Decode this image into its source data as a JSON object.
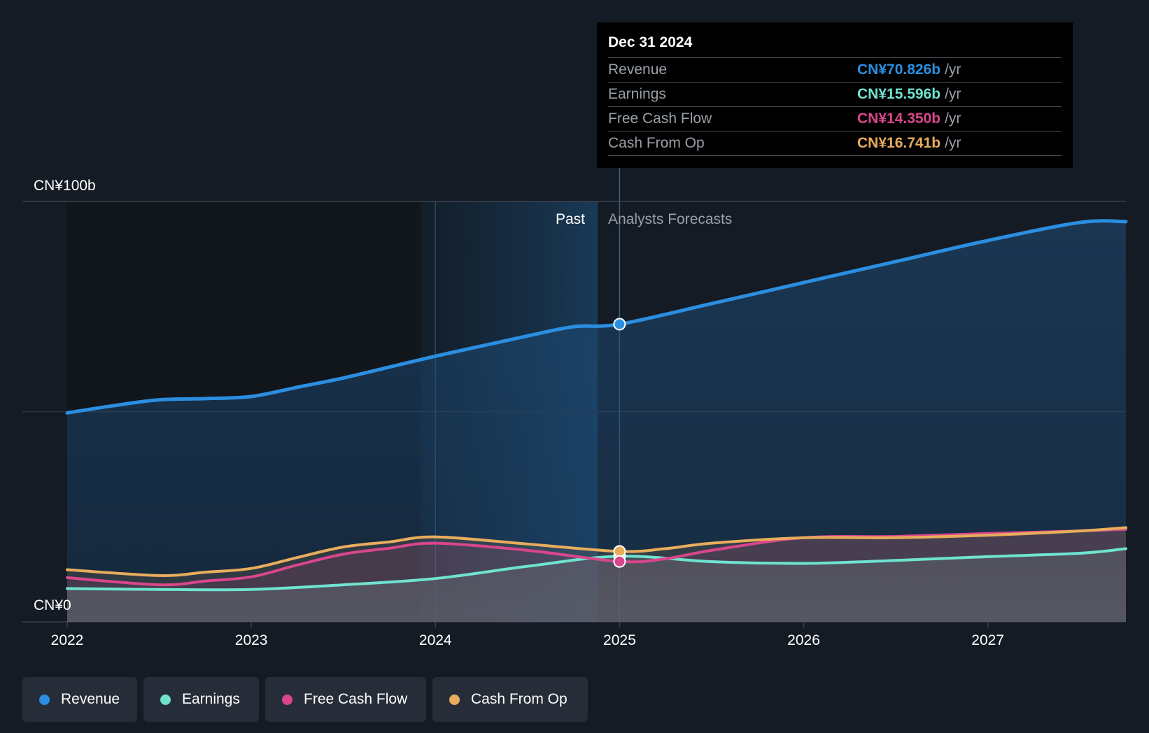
{
  "chart_data": {
    "type": "area",
    "y_axis": {
      "top_label": "CN¥100b",
      "bottom_label": "CN¥0",
      "ylim": [
        0,
        100
      ]
    },
    "x_axis": {
      "ticks": [
        "2022",
        "2023",
        "2024",
        "2025",
        "2026",
        "2027"
      ],
      "range": [
        2022,
        2027.75
      ]
    },
    "regions": {
      "past_label": "Past",
      "forecast_label": "Analysts Forecasts",
      "divider_x": 2025.0
    },
    "series": [
      {
        "name": "Revenue",
        "color": "#2b8ee0",
        "points": [
          [
            2022.0,
            49.7
          ],
          [
            2022.25,
            51.4
          ],
          [
            2022.5,
            52.8
          ],
          [
            2022.75,
            53.1
          ],
          [
            2023.0,
            53.6
          ],
          [
            2023.25,
            55.8
          ],
          [
            2023.5,
            58.0
          ],
          [
            2023.75,
            60.6
          ],
          [
            2024.0,
            63.2
          ],
          [
            2024.25,
            65.6
          ],
          [
            2024.5,
            68.0
          ],
          [
            2024.75,
            70.2
          ],
          [
            2025.0,
            70.8
          ],
          [
            2025.5,
            75.7
          ],
          [
            2026.0,
            80.7
          ],
          [
            2026.5,
            85.7
          ],
          [
            2027.0,
            90.7
          ],
          [
            2027.5,
            95.0
          ],
          [
            2027.75,
            95.2
          ]
        ]
      },
      {
        "name": "Earnings",
        "color": "#6fe3cf",
        "points": [
          [
            2022.0,
            7.9
          ],
          [
            2022.5,
            7.7
          ],
          [
            2023.0,
            7.7
          ],
          [
            2023.5,
            8.8
          ],
          [
            2024.0,
            10.3
          ],
          [
            2024.5,
            13.2
          ],
          [
            2025.0,
            15.6
          ],
          [
            2025.5,
            14.3
          ],
          [
            2026.0,
            13.9
          ],
          [
            2026.5,
            14.6
          ],
          [
            2027.0,
            15.5
          ],
          [
            2027.5,
            16.3
          ],
          [
            2027.75,
            17.4
          ]
        ]
      },
      {
        "name": "Free Cash Flow",
        "color": "#d9468c",
        "points": [
          [
            2022.0,
            10.5
          ],
          [
            2022.5,
            8.8
          ],
          [
            2022.75,
            9.7
          ],
          [
            2023.0,
            10.7
          ],
          [
            2023.25,
            13.5
          ],
          [
            2023.5,
            16.1
          ],
          [
            2023.75,
            17.5
          ],
          [
            2024.0,
            18.7
          ],
          [
            2024.5,
            17.0
          ],
          [
            2025.0,
            14.35
          ],
          [
            2025.25,
            15.0
          ],
          [
            2025.5,
            17.0
          ],
          [
            2026.0,
            20.0
          ],
          [
            2026.5,
            20.3
          ],
          [
            2027.0,
            21.0
          ],
          [
            2027.5,
            21.6
          ],
          [
            2027.75,
            22.0
          ]
        ]
      },
      {
        "name": "Cash From Op",
        "color": "#e8ad5c",
        "points": [
          [
            2022.0,
            12.4
          ],
          [
            2022.5,
            11.0
          ],
          [
            2022.75,
            11.8
          ],
          [
            2023.0,
            12.7
          ],
          [
            2023.25,
            15.3
          ],
          [
            2023.5,
            17.8
          ],
          [
            2023.75,
            19.0
          ],
          [
            2024.0,
            20.2
          ],
          [
            2024.5,
            18.5
          ],
          [
            2025.0,
            16.741
          ],
          [
            2025.25,
            17.4
          ],
          [
            2025.5,
            18.7
          ],
          [
            2026.0,
            20.0
          ],
          [
            2026.5,
            20.0
          ],
          [
            2027.0,
            20.6
          ],
          [
            2027.5,
            21.6
          ],
          [
            2027.75,
            22.4
          ]
        ]
      }
    ]
  },
  "tooltip": {
    "date": "Dec 31 2024",
    "rows": [
      {
        "name": "Revenue",
        "value": "CN¥70.826b",
        "unit": "/yr",
        "color": "#2b8ee0"
      },
      {
        "name": "Earnings",
        "value": "CN¥15.596b",
        "unit": "/yr",
        "color": "#6fe3cf"
      },
      {
        "name": "Free Cash Flow",
        "value": "CN¥14.350b",
        "unit": "/yr",
        "color": "#d9468c"
      },
      {
        "name": "Cash From Op",
        "value": "CN¥16.741b",
        "unit": "/yr",
        "color": "#e8ad5c"
      }
    ]
  },
  "legend": [
    {
      "label": "Revenue",
      "color": "#2b8ee0"
    },
    {
      "label": "Earnings",
      "color": "#6fe3cf"
    },
    {
      "label": "Free Cash Flow",
      "color": "#d9468c"
    },
    {
      "label": "Cash From Op",
      "color": "#e8ad5c"
    }
  ]
}
